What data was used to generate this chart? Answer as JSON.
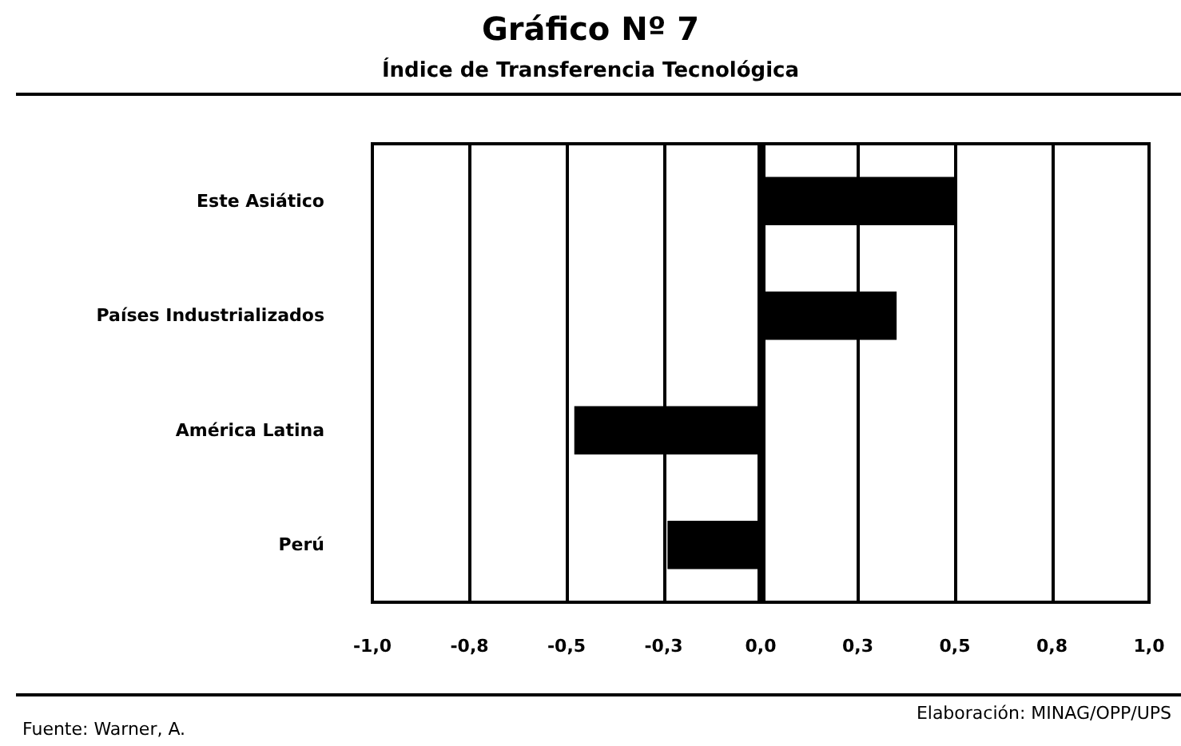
{
  "chart_data": {
    "type": "bar",
    "orientation": "horizontal",
    "title": "Gráfico Nº 7",
    "subtitle": "Índice de Transferencia Tecnológica",
    "categories": [
      "Este Asiático",
      "Países Industrializados",
      "América Latina",
      "Perú"
    ],
    "values": [
      0.5,
      0.35,
      -0.48,
      -0.24
    ],
    "color": "#000000",
    "xlim": [
      -1,
      1
    ],
    "xticks": [
      {
        "value": -1,
        "label": "-1,0"
      },
      {
        "value": -0.75,
        "label": "-0,8"
      },
      {
        "value": -0.5,
        "label": "-0,5"
      },
      {
        "value": -0.25,
        "label": "-0,3"
      },
      {
        "value": 0,
        "label": "0,0"
      },
      {
        "value": 0.25,
        "label": "0,3"
      },
      {
        "value": 0.5,
        "label": "0,5"
      },
      {
        "value": 0.75,
        "label": "0,8"
      },
      {
        "value": 1,
        "label": "1,0"
      }
    ],
    "grid": "x",
    "annotations": [
      "Fuente: Warner, A.",
      "Elaboración: MINAG/OPP/UPS"
    ]
  }
}
